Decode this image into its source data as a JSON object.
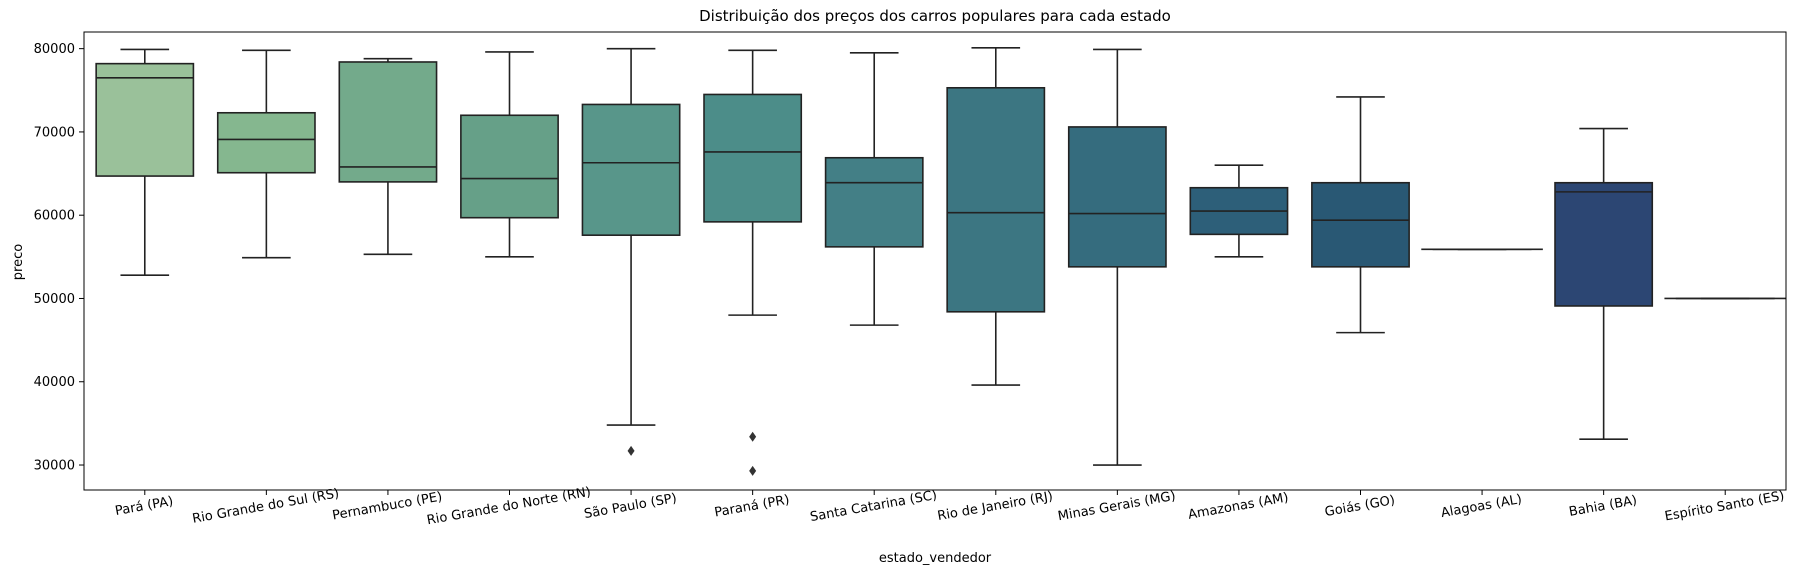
{
  "chart_data": {
    "type": "box",
    "title": "Distribuição dos preços dos carros populares para cada estado",
    "xlabel": "estado_vendedor",
    "ylabel": "preco",
    "ylim": [
      27000,
      82000
    ],
    "yticks": [
      30000,
      40000,
      50000,
      60000,
      70000,
      80000
    ],
    "grid": false,
    "categories": [
      "Pará (PA)",
      "Rio Grande do Sul (RS)",
      "Pernambuco (PE)",
      "Rio Grande do Norte (RN)",
      "São Paulo (SP)",
      "Paraná (PR)",
      "Santa Catarina (SC)",
      "Rio de Janeiro (RJ)",
      "Minas Gerais (MG)",
      "Amazonas (AM)",
      "Goiás (GO)",
      "Alagoas (AL)",
      "Bahia (BA)",
      "Espírito Santo (ES)"
    ],
    "boxes": [
      {
        "whislo": 52800,
        "q1": 64700,
        "med": 76500,
        "q3": 78200,
        "whishi": 79900,
        "fliers": []
      },
      {
        "whislo": 54900,
        "q1": 65100,
        "med": 69100,
        "q3": 72300,
        "whishi": 79800,
        "fliers": []
      },
      {
        "whislo": 55300,
        "q1": 64000,
        "med": 65800,
        "q3": 78400,
        "whishi": 78800,
        "fliers": []
      },
      {
        "whislo": 55000,
        "q1": 59700,
        "med": 64400,
        "q3": 72000,
        "whishi": 79600,
        "fliers": []
      },
      {
        "whislo": 34800,
        "q1": 57600,
        "med": 66300,
        "q3": 73300,
        "whishi": 80000,
        "fliers": [
          31700
        ]
      },
      {
        "whislo": 48000,
        "q1": 59200,
        "med": 67600,
        "q3": 74500,
        "whishi": 79800,
        "fliers": [
          33400,
          29300
        ]
      },
      {
        "whislo": 46800,
        "q1": 56200,
        "med": 63900,
        "q3": 66900,
        "whishi": 79500,
        "fliers": []
      },
      {
        "whislo": 39600,
        "q1": 48400,
        "med": 60300,
        "q3": 75300,
        "whishi": 80100,
        "fliers": []
      },
      {
        "whislo": 30000,
        "q1": 53800,
        "med": 60200,
        "q3": 70600,
        "whishi": 79900,
        "fliers": []
      },
      {
        "whislo": 55000,
        "q1": 57700,
        "med": 60500,
        "q3": 63300,
        "whishi": 66000,
        "fliers": []
      },
      {
        "whislo": 45900,
        "q1": 53800,
        "med": 59400,
        "q3": 63900,
        "whishi": 74200,
        "fliers": []
      },
      {
        "whislo": 55900,
        "q1": 55900,
        "med": 55900,
        "q3": 55900,
        "whishi": 55900,
        "fliers": []
      },
      {
        "whislo": 33100,
        "q1": 49100,
        "med": 62800,
        "q3": 63900,
        "whishi": 70400,
        "fliers": []
      },
      {
        "whislo": 50000,
        "q1": 50000,
        "med": 50000,
        "q3": 50000,
        "whishi": 50000,
        "fliers": []
      }
    ],
    "colors": [
      "#9ac19a",
      "#85b78f",
      "#73aa8b",
      "#66a088",
      "#58968a",
      "#4c8d89",
      "#437f86",
      "#3c7682",
      "#356c7e",
      "#2d5f79",
      "#295874",
      "#264d6c",
      "#2c4673",
      "#313d68"
    ],
    "line_color": "#222222"
  }
}
